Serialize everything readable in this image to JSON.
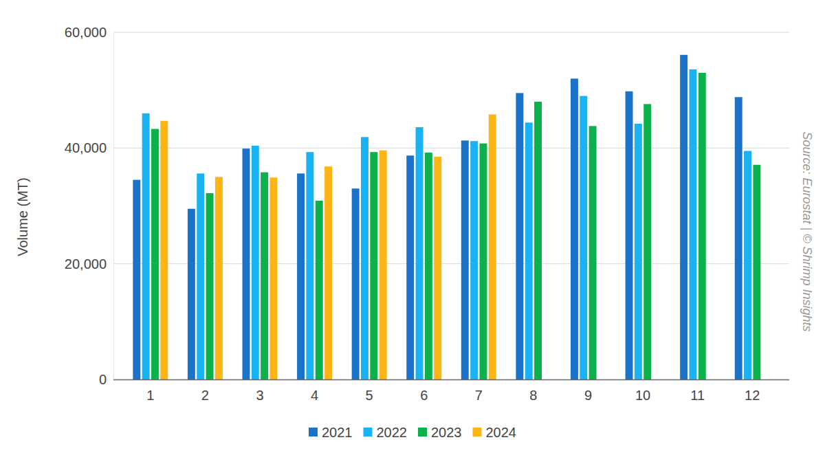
{
  "chart_data": {
    "type": "bar",
    "y_label": "Volume (MT)",
    "annotations": [
      "Source: Eurostat | © Shrimp Insights"
    ],
    "categories": [
      "1",
      "2",
      "3",
      "4",
      "5",
      "6",
      "7",
      "8",
      "9",
      "10",
      "11",
      "12"
    ],
    "series": [
      {
        "name": "2021",
        "color": "#1a73c9",
        "values": [
          34500,
          29500,
          39900,
          35600,
          33000,
          38700,
          41300,
          49500,
          52000,
          49800,
          56100,
          48800
        ]
      },
      {
        "name": "2022",
        "color": "#19b2f2",
        "values": [
          46000,
          35600,
          40400,
          39300,
          41900,
          43600,
          41200,
          44400,
          49000,
          44200,
          53600,
          39500
        ]
      },
      {
        "name": "2023",
        "color": "#0cb14b",
        "values": [
          43300,
          32200,
          35800,
          30900,
          39300,
          39200,
          40800,
          48000,
          43800,
          47600,
          53000,
          37100
        ]
      },
      {
        "name": "2024",
        "color": "#fdb515",
        "values": [
          44700,
          35000,
          34900,
          36800,
          39600,
          38500,
          45800,
          null,
          null,
          null,
          null,
          null
        ]
      }
    ],
    "ylim": [
      0,
      60000
    ],
    "yticks": [
      0,
      {
        "value": 20000,
        "label": "20,000"
      },
      {
        "value": 40000,
        "label": "40,000"
      },
      {
        "value": 60000,
        "label": "60,000"
      }
    ],
    "grid": true,
    "legend": "bottom"
  }
}
